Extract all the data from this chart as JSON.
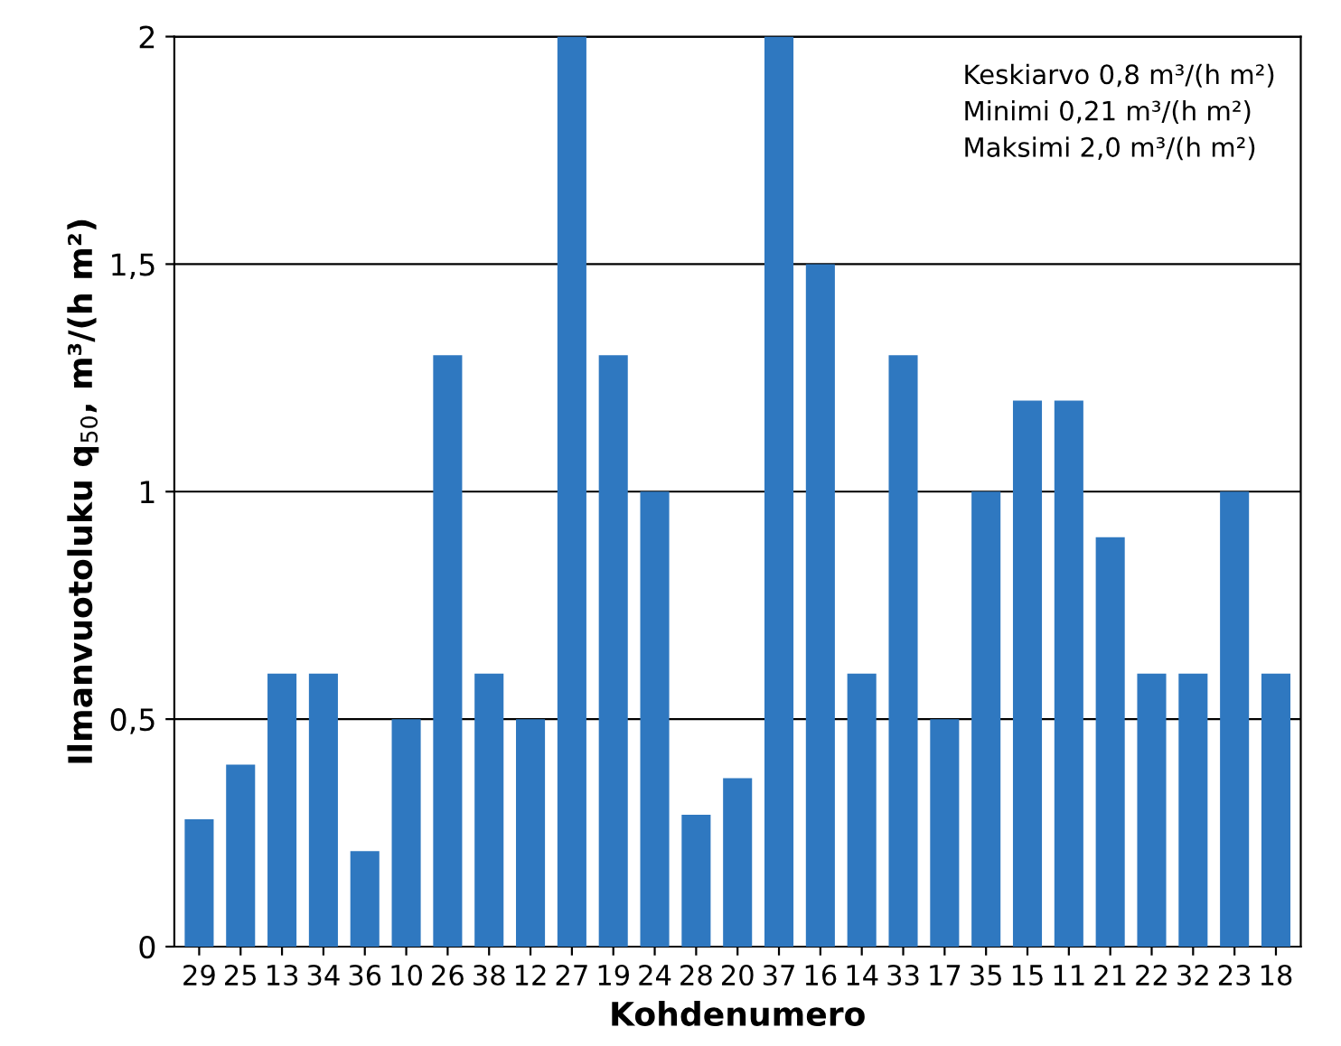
{
  "chart_data": {
    "type": "bar",
    "xlabel": "Kohdenumero",
    "ylabel": "Ilmanvuotoluku q$_{50}$, m³/(h m²)",
    "categories": [
      "29",
      "25",
      "13",
      "34",
      "36",
      "10",
      "26",
      "38",
      "12",
      "27",
      "19",
      "24",
      "28",
      "20",
      "37",
      "16",
      "14",
      "33",
      "17",
      "35",
      "15",
      "11",
      "21",
      "22",
      "32",
      "23",
      "18"
    ],
    "values": [
      0.28,
      0.4,
      0.6,
      0.6,
      0.21,
      0.5,
      1.3,
      0.6,
      0.5,
      2.0,
      1.3,
      1.0,
      0.29,
      0.37,
      2.0,
      1.5,
      0.6,
      1.3,
      0.5,
      1.0,
      1.2,
      1.2,
      0.9,
      0.6,
      0.6,
      1.0,
      0.6
    ],
    "color": "#2f78c0",
    "ylim": [
      0,
      2
    ],
    "yticks": [
      0,
      {
        "value": 0.5,
        "label": "0,5"
      },
      1,
      {
        "value": 1.5,
        "label": "1,5"
      },
      2
    ],
    "grid": "y",
    "annotations": [
      "Keskiarvo 0,8 m³/(h m²)",
      "Minimi 0,21 m³/(h m²)",
      "Maksimi 2,0 m³/(h m²)"
    ]
  }
}
